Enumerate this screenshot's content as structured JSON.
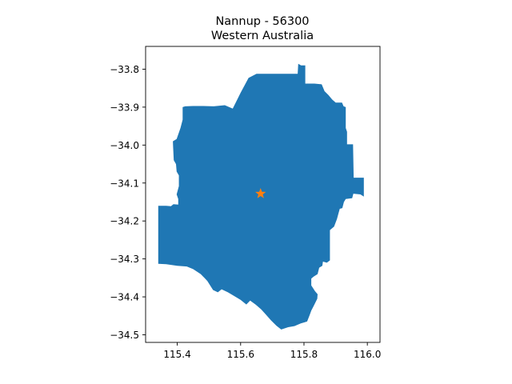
{
  "chart_data": {
    "type": "map",
    "title": "Nannup - 56300",
    "subtitle": "Western Australia",
    "xlabel": "",
    "ylabel": "",
    "xlim": [
      115.3,
      116.04
    ],
    "ylim": [
      -34.52,
      -33.74
    ],
    "x_ticks": [
      115.4,
      115.6,
      115.8,
      116.0
    ],
    "x_tick_labels": [
      "115.4",
      "115.6",
      "115.8",
      "116.0"
    ],
    "y_ticks": [
      -33.8,
      -33.9,
      -34.0,
      -34.1,
      -34.2,
      -34.3,
      -34.4,
      -34.5
    ],
    "y_tick_labels": [
      "−33.8",
      "−33.9",
      "−34.0",
      "−34.1",
      "−34.2",
      "−34.3",
      "−34.4",
      "−34.5"
    ],
    "grid": false,
    "region": {
      "name": "Nannup - 56300",
      "color": "#1f77b4",
      "boundary": [
        [
          115.575,
          -33.904
        ],
        [
          115.6,
          -33.862
        ],
        [
          115.625,
          -33.823
        ],
        [
          115.65,
          -33.812
        ],
        [
          115.693,
          -33.812
        ],
        [
          115.78,
          -33.812
        ],
        [
          115.782,
          -33.786
        ],
        [
          115.791,
          -33.79
        ],
        [
          115.804,
          -33.79
        ],
        [
          115.804,
          -33.838
        ],
        [
          115.833,
          -33.838
        ],
        [
          115.856,
          -33.84
        ],
        [
          115.865,
          -33.858
        ],
        [
          115.877,
          -33.868
        ],
        [
          115.889,
          -33.88
        ],
        [
          115.9,
          -33.888
        ],
        [
          115.92,
          -33.888
        ],
        [
          115.925,
          -33.898
        ],
        [
          115.932,
          -33.9
        ],
        [
          115.932,
          -33.955
        ],
        [
          115.936,
          -33.965
        ],
        [
          115.936,
          -33.998
        ],
        [
          115.955,
          -33.998
        ],
        [
          115.957,
          -34.086
        ],
        [
          115.989,
          -34.086
        ],
        [
          115.989,
          -34.136
        ],
        [
          115.978,
          -34.13
        ],
        [
          115.956,
          -34.128
        ],
        [
          115.952,
          -34.14
        ],
        [
          115.932,
          -34.142
        ],
        [
          115.926,
          -34.15
        ],
        [
          115.921,
          -34.166
        ],
        [
          115.913,
          -34.168
        ],
        [
          115.909,
          -34.18
        ],
        [
          115.904,
          -34.195
        ],
        [
          115.895,
          -34.215
        ],
        [
          115.882,
          -34.224
        ],
        [
          115.882,
          -34.304
        ],
        [
          115.872,
          -34.31
        ],
        [
          115.86,
          -34.307
        ],
        [
          115.858,
          -34.318
        ],
        [
          115.848,
          -34.323
        ],
        [
          115.843,
          -34.34
        ],
        [
          115.83,
          -34.347
        ],
        [
          115.823,
          -34.352
        ],
        [
          115.823,
          -34.37
        ],
        [
          115.835,
          -34.385
        ],
        [
          115.843,
          -34.393
        ],
        [
          115.842,
          -34.405
        ],
        [
          115.836,
          -34.415
        ],
        [
          115.83,
          -34.425
        ],
        [
          115.823,
          -34.436
        ],
        [
          115.818,
          -34.448
        ],
        [
          115.81,
          -34.465
        ],
        [
          115.79,
          -34.47
        ],
        [
          115.77,
          -34.477
        ],
        [
          115.75,
          -34.48
        ],
        [
          115.728,
          -34.486
        ],
        [
          115.713,
          -34.476
        ],
        [
          115.696,
          -34.462
        ],
        [
          115.68,
          -34.447
        ],
        [
          115.665,
          -34.433
        ],
        [
          115.647,
          -34.42
        ],
        [
          115.63,
          -34.41
        ],
        [
          115.618,
          -34.42
        ],
        [
          115.6,
          -34.408
        ],
        [
          115.58,
          -34.398
        ],
        [
          115.56,
          -34.388
        ],
        [
          115.54,
          -34.38
        ],
        [
          115.528,
          -34.388
        ],
        [
          115.513,
          -34.382
        ],
        [
          115.495,
          -34.358
        ],
        [
          115.474,
          -34.34
        ],
        [
          115.45,
          -34.327
        ],
        [
          115.43,
          -34.32
        ],
        [
          115.4,
          -34.318
        ],
        [
          115.365,
          -34.314
        ],
        [
          115.34,
          -34.313
        ],
        [
          115.34,
          -34.16
        ],
        [
          115.365,
          -34.16
        ],
        [
          115.38,
          -34.161
        ],
        [
          115.388,
          -34.156
        ],
        [
          115.403,
          -34.157
        ],
        [
          115.403,
          -34.142
        ],
        [
          115.398,
          -34.13
        ],
        [
          115.405,
          -34.108
        ],
        [
          115.405,
          -34.08
        ],
        [
          115.398,
          -34.07
        ],
        [
          115.396,
          -34.05
        ],
        [
          115.389,
          -34.04
        ],
        [
          115.387,
          -34.005
        ],
        [
          115.386,
          -33.99
        ],
        [
          115.398,
          -33.984
        ],
        [
          115.405,
          -33.967
        ],
        [
          115.41,
          -33.955
        ],
        [
          115.417,
          -33.933
        ],
        [
          115.417,
          -33.9
        ],
        [
          115.425,
          -33.898
        ],
        [
          115.45,
          -33.897
        ],
        [
          115.48,
          -33.897
        ],
        [
          115.515,
          -33.898
        ],
        [
          115.55,
          -33.895
        ]
      ]
    },
    "marker": {
      "x": 115.663,
      "y": -34.128,
      "symbol": "star",
      "color": "#ff7f0e"
    }
  }
}
